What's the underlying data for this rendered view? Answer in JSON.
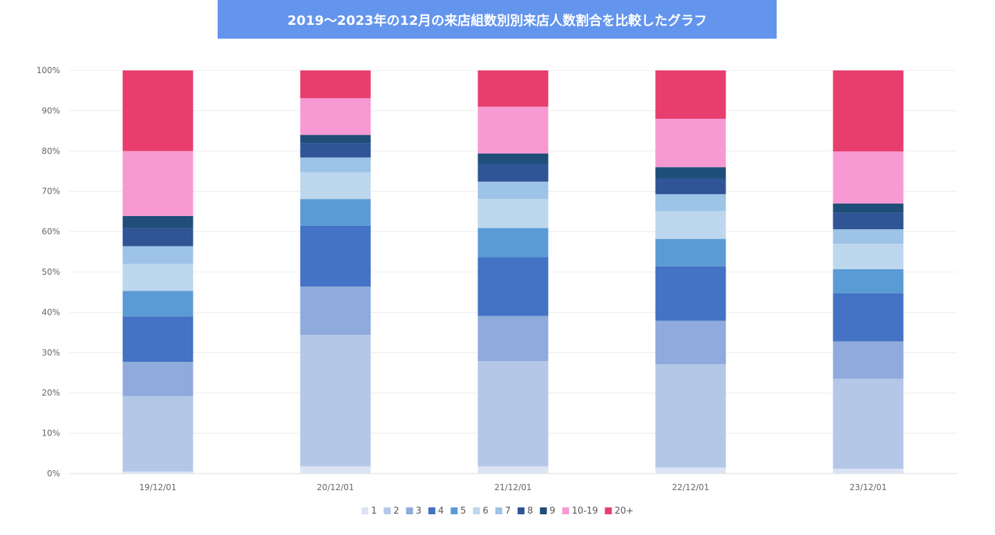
{
  "chart_data": {
    "type": "bar",
    "stacked": true,
    "normalized": true,
    "title": "2019〜2023年の12月の来店組数別別来店人数割合を比較したグラフ",
    "xlabel": "",
    "ylabel": "",
    "ylim": [
      0,
      100
    ],
    "y_ticks": [
      "0%",
      "10%",
      "20%",
      "30%",
      "40%",
      "50%",
      "60%",
      "70%",
      "80%",
      "90%",
      "100%"
    ],
    "grid": true,
    "legend_position": "bottom",
    "categories": [
      "19/12/01",
      "20/12/01",
      "21/12/01",
      "22/12/01",
      "23/12/01"
    ],
    "series": [
      {
        "name": "1",
        "color": "#dce4f4",
        "values": [
          0.5,
          1.8,
          1.8,
          1.5,
          1.2
        ]
      },
      {
        "name": "2",
        "color": "#b4c7e7",
        "values": [
          18.7,
          32.6,
          26.1,
          25.6,
          22.3
        ]
      },
      {
        "name": "3",
        "color": "#8faadc",
        "values": [
          8.5,
          12.0,
          11.2,
          10.8,
          9.3
        ]
      },
      {
        "name": "4",
        "color": "#4472c4",
        "values": [
          11.3,
          15.1,
          14.6,
          13.5,
          11.9
        ]
      },
      {
        "name": "5",
        "color": "#5b9bd5",
        "values": [
          6.3,
          6.6,
          7.2,
          6.8,
          6.0
        ]
      },
      {
        "name": "6",
        "color": "#bdd7ee",
        "values": [
          6.7,
          6.6,
          7.2,
          6.9,
          6.3
        ]
      },
      {
        "name": "7",
        "color": "#9dc3e6",
        "values": [
          4.4,
          3.7,
          4.3,
          4.2,
          3.6
        ]
      },
      {
        "name": "8",
        "color": "#2f5597",
        "values": [
          4.5,
          3.6,
          4.4,
          3.9,
          4.0
        ]
      },
      {
        "name": "9",
        "color": "#1f4e79",
        "values": [
          3.0,
          2.0,
          2.6,
          2.8,
          2.4
        ]
      },
      {
        "name": "10-19",
        "color": "#f79ad3",
        "values": [
          16.1,
          9.1,
          11.6,
          12.0,
          12.9
        ]
      },
      {
        "name": "20+",
        "color": "#e83e6e",
        "values": [
          20.0,
          6.9,
          9.0,
          12.0,
          20.1
        ]
      }
    ]
  }
}
